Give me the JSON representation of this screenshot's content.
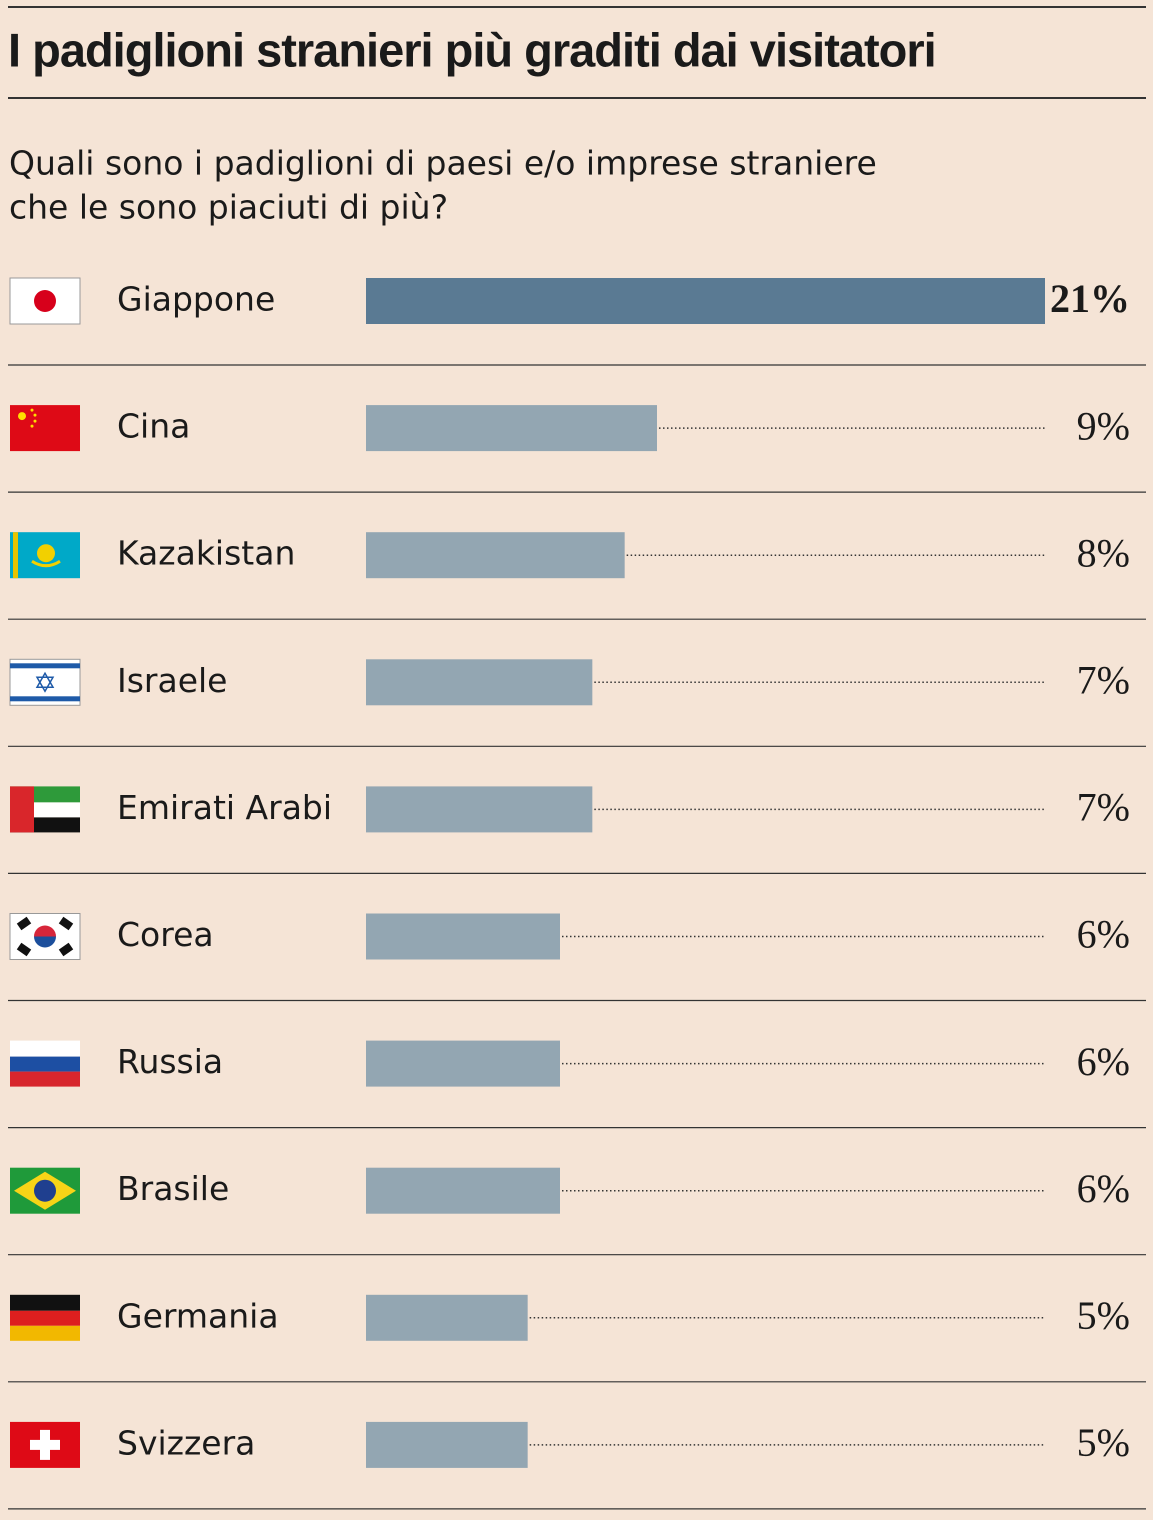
{
  "chart_data": {
    "type": "bar",
    "title": "I padiglioni stranieri più graditi dai visitatori",
    "subtitle": [
      "Quali sono i padiglioni di paesi e/o imprese straniere",
      "che le sono piaciuti di più?"
    ],
    "categories": [
      "Giappone",
      "Cina",
      "Kazakistan",
      "Israele",
      "Emirati Arabi",
      "Corea",
      "Russia",
      "Brasile",
      "Germania",
      "Svizzera"
    ],
    "values": [
      21,
      9,
      8,
      7,
      7,
      6,
      6,
      6,
      5,
      5
    ],
    "value_labels": [
      "21%",
      "9%",
      "8%",
      "7%",
      "7%",
      "6%",
      "6%",
      "6%",
      "5%",
      "5%"
    ],
    "colors": [
      "#5a7a93",
      "#93a6b2",
      "#93a6b2",
      "#93a6b2",
      "#93a6b2",
      "#93a6b2",
      "#93a6b2",
      "#93a6b2",
      "#93a6b2",
      "#93a6b2"
    ]
  }
}
